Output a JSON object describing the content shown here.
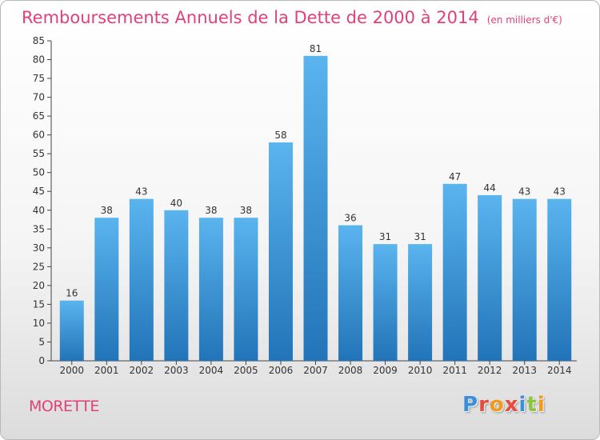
{
  "title": "Remboursements Annuels de la Dette de 2000 à 2014",
  "unit": "(en milliers d'€)",
  "commune": "MORETTE",
  "logo": {
    "text": "Proxiti",
    "colors": [
      "#3a8fd8",
      "#e84c3d",
      "#f29a1a",
      "#e84c3d",
      "#3a8fd8",
      "#8cc63f",
      "#f29a1a"
    ]
  },
  "colors": {
    "bar_light": "#5ab4ee",
    "bar_dark": "#2274b8",
    "accent": "#e0417a"
  },
  "chart_data": {
    "type": "bar",
    "categories": [
      "2000",
      "2001",
      "2002",
      "2003",
      "2004",
      "2005",
      "2006",
      "2007",
      "2008",
      "2009",
      "2010",
      "2011",
      "2012",
      "2013",
      "2014"
    ],
    "values": [
      16,
      38,
      43,
      40,
      38,
      38,
      58,
      81,
      36,
      31,
      31,
      47,
      44,
      43,
      43
    ],
    "data_labels": [
      "16",
      "38",
      "43",
      "40",
      "38",
      "38",
      "58",
      "81",
      "36",
      "31",
      "31",
      "47",
      "44",
      "43",
      "43"
    ],
    "ylim": [
      0,
      85
    ],
    "yticks": [
      "0",
      "5",
      "10",
      "15",
      "20",
      "25",
      "30",
      "35",
      "40",
      "45",
      "50",
      "55",
      "60",
      "65",
      "70",
      "75",
      "80",
      "85"
    ],
    "grid": false,
    "legend": "none"
  }
}
